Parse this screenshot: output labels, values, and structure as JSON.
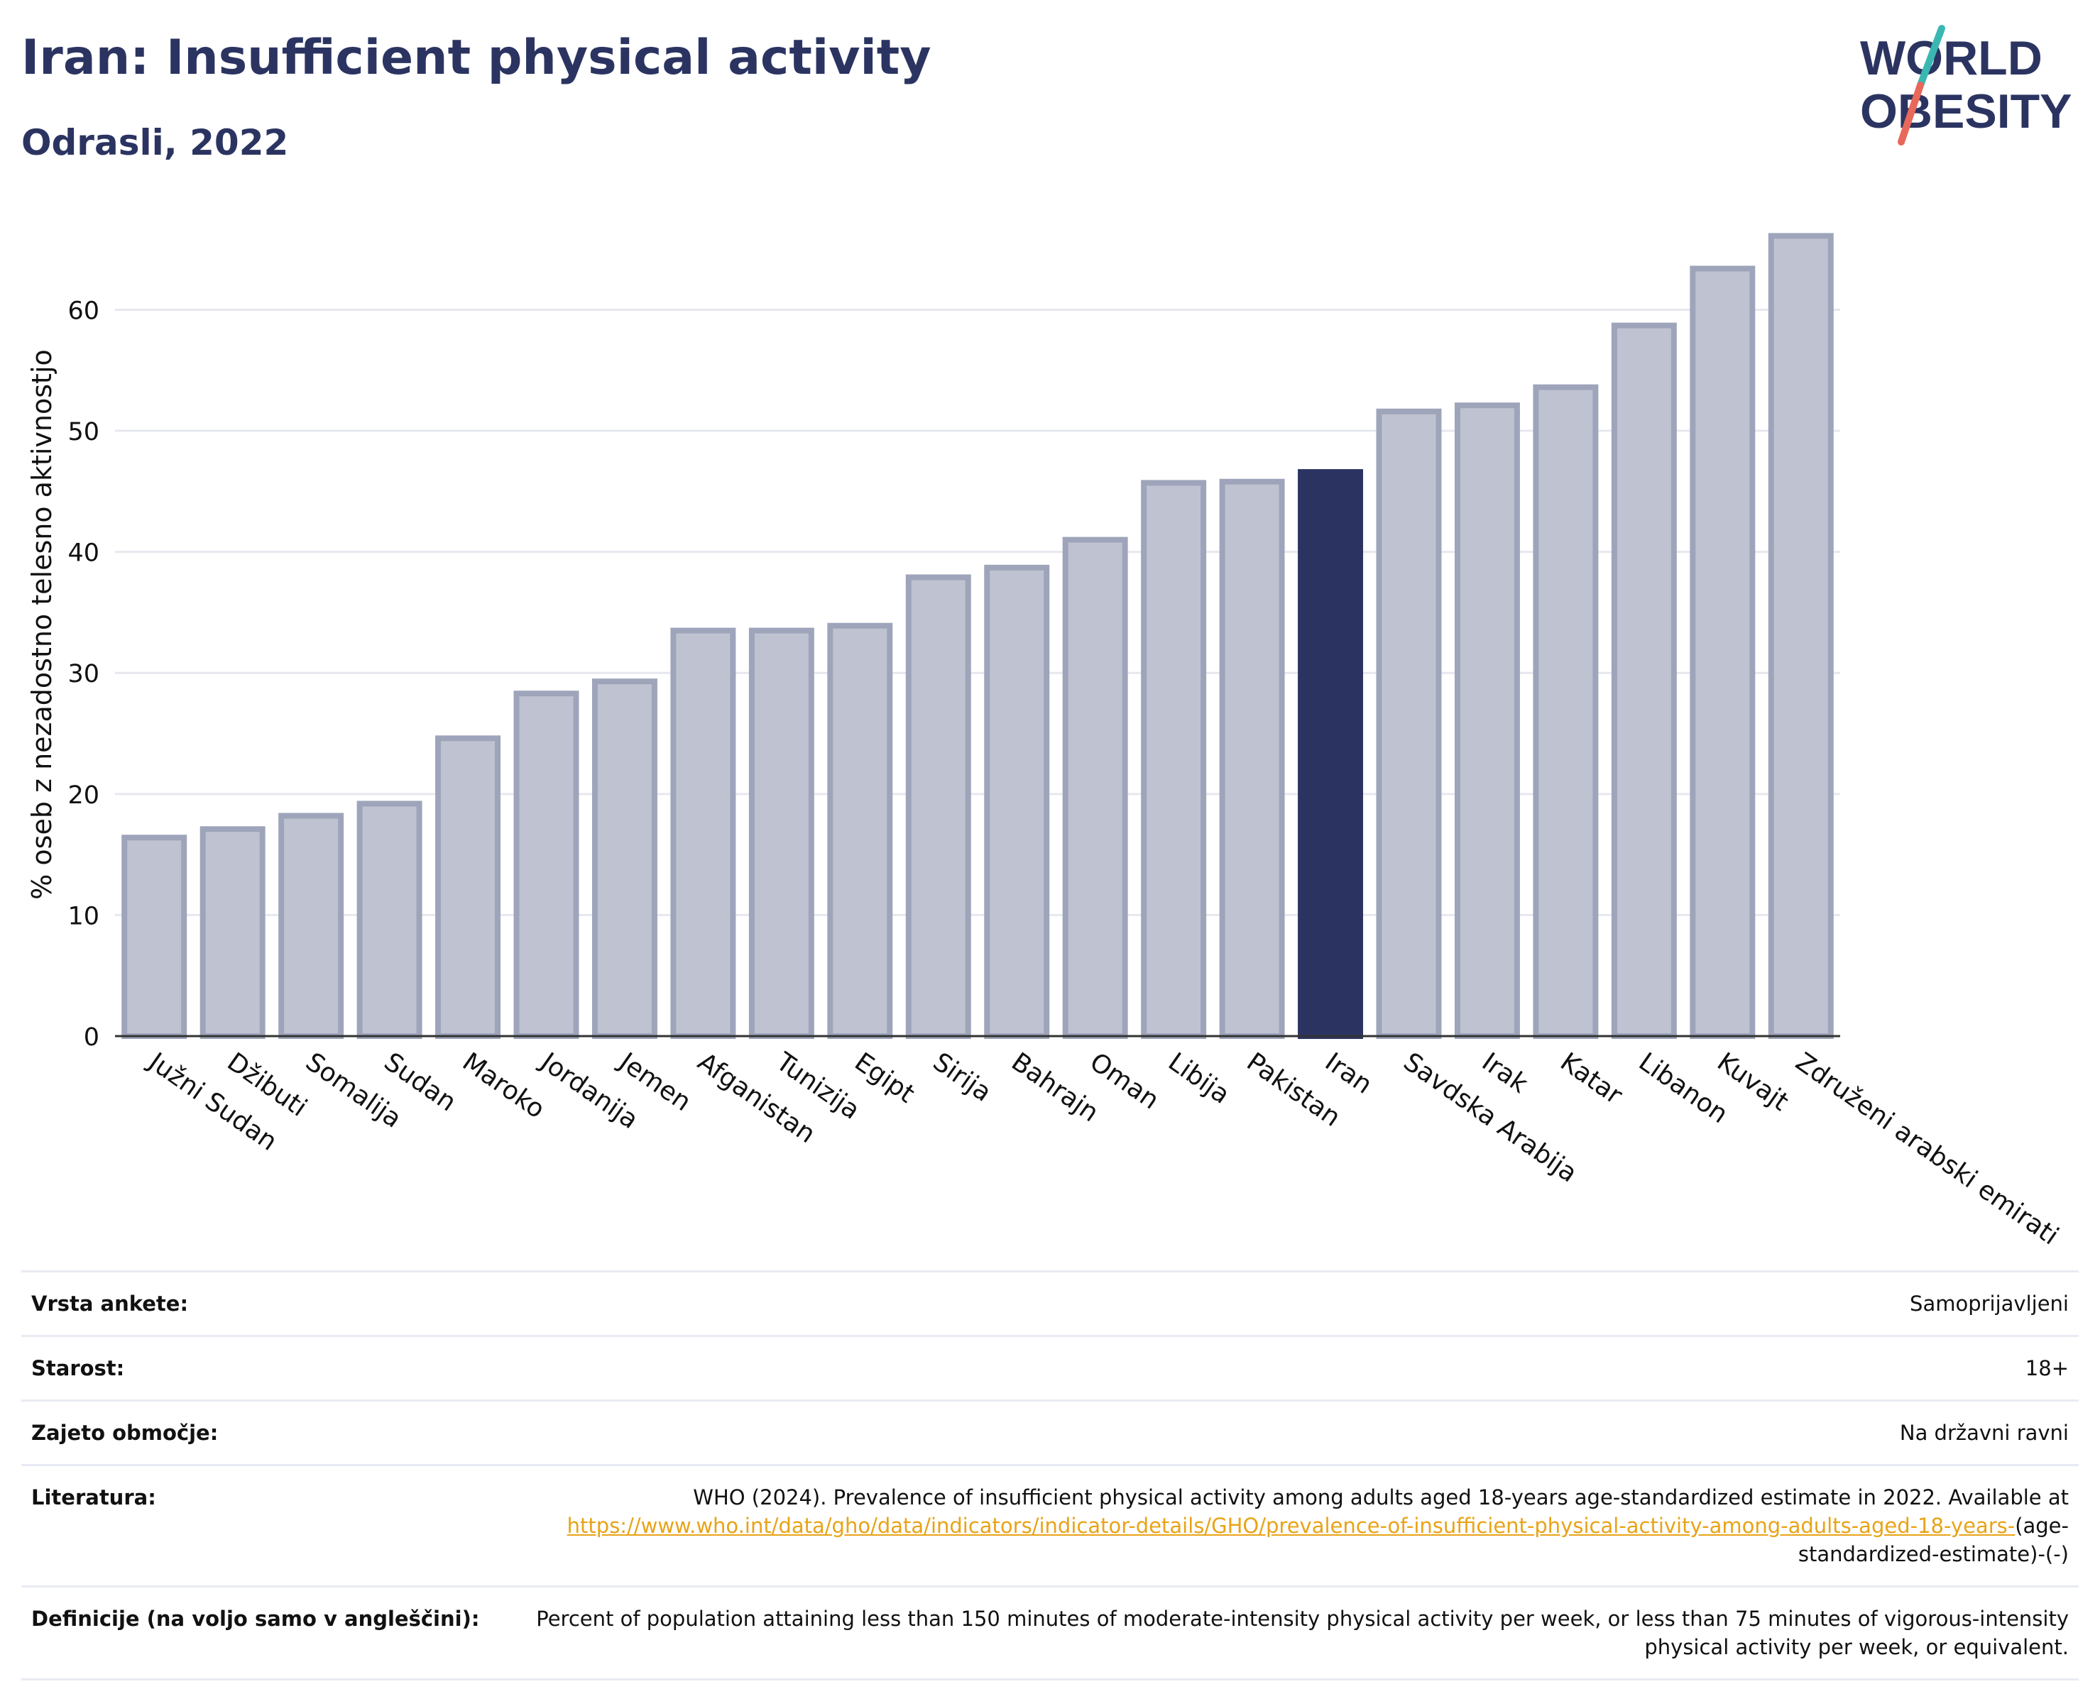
{
  "header": {
    "title": "Iran: Insufficient physical activity",
    "subtitle": "Odrasli, 2022"
  },
  "logo": {
    "line1": "WORLD",
    "line2": "OBESITY",
    "colors": {
      "text": "#2b3461",
      "slash_orange": "#e8685a",
      "slash_teal": "#3ab7b3"
    }
  },
  "chart_data": {
    "type": "bar",
    "title": "",
    "xlabel": "",
    "ylabel": "% oseb z nezadostno telesno aktivnostjo",
    "ylim": [
      0,
      68
    ],
    "yticks": [
      0,
      10,
      20,
      30,
      40,
      50,
      60
    ],
    "grid": true,
    "highlight_category": "Iran",
    "colors": {
      "bar": "#bfc3d1",
      "bar_edge": "#9ea4ba",
      "highlight": "#2b3461",
      "grid": "#e6e8ef",
      "axis": "#333333"
    },
    "categories": [
      "Južni Sudan",
      "Džibuti",
      "Somalija",
      "Sudan",
      "Maroko",
      "Jordanija",
      "Jemen",
      "Afganistan",
      "Tunizija",
      "Egipt",
      "Sirija",
      "Bahrajn",
      "Oman",
      "Libija",
      "Pakistan",
      "Iran",
      "Savdska Arabija",
      "Irak",
      "Katar",
      "Libanon",
      "Kuvajt",
      "Združeni arabski emirati"
    ],
    "values": [
      16.4,
      17.1,
      18.2,
      19.2,
      24.6,
      28.3,
      29.3,
      33.5,
      33.5,
      33.9,
      37.9,
      38.7,
      41.0,
      45.7,
      45.8,
      46.6,
      51.6,
      52.1,
      53.6,
      58.7,
      63.4,
      66.1
    ]
  },
  "info": {
    "survey_type": {
      "label": "Vrsta ankete:",
      "value": "Samoprijavljeni"
    },
    "age": {
      "label": "Starost:",
      "value": "18+"
    },
    "coverage": {
      "label": "Zajeto območje:",
      "value": "Na državni ravni"
    },
    "reference": {
      "label": "Literatura:",
      "text": "WHO (2024). Prevalence of insufficient physical activity among adults aged 18-years age-standardized estimate in 2022. Available at",
      "link": "https://www.who.int/data/gho/data/indicators/indicator-details/GHO/prevalence-of-insufficient-physical-activity-among-adults-aged-18-years-",
      "link_suffix": "(age-standardized-estimate)-(-)"
    },
    "definition": {
      "label": "Definicije (na voljo samo v angleščini):",
      "value": "Percent of population attaining less than 150 minutes of moderate-intensity physical activity per week, or less than 75 minutes of vigorous-intensity physical activity per week, or equivalent."
    }
  }
}
